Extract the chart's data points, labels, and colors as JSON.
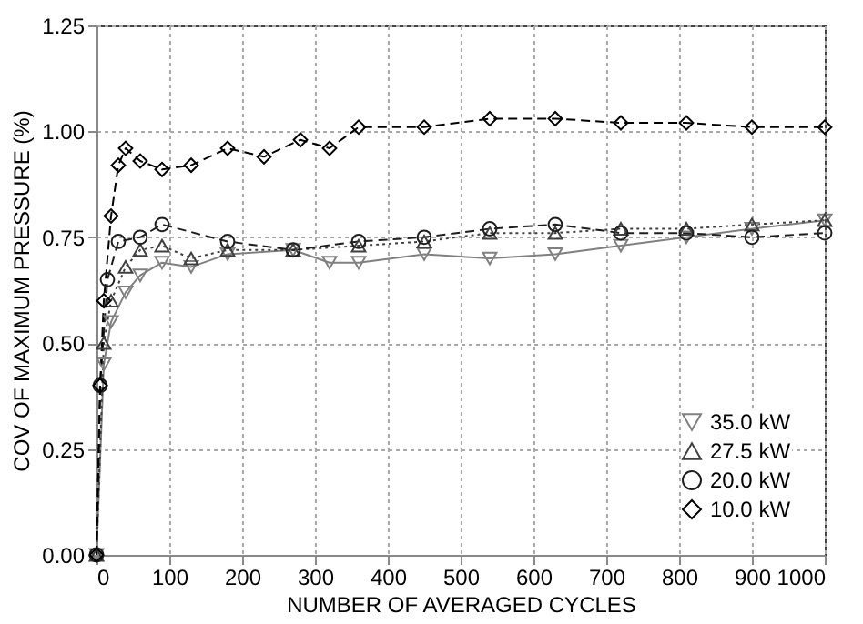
{
  "chart_data": {
    "type": "line",
    "xlabel": "NUMBER OF AVERAGED CYCLES",
    "ylabel": "COV OF MAXIMUM PRESSURE (%)",
    "xlim": [
      0,
      1000
    ],
    "xticks": [
      0,
      100,
      200,
      300,
      400,
      500,
      600,
      700,
      800,
      900,
      1000
    ],
    "ylim": [
      0,
      1.25
    ],
    "yticks": [
      {
        "value": 0,
        "label": "0.00"
      },
      0.25,
      {
        "value": 0.5,
        "label": "0.50"
      },
      0.75,
      {
        "value": 1,
        "label": "1.00"
      },
      1.25
    ],
    "grid": true,
    "legend": "bottom right",
    "series": [
      {
        "name": "35.0 kW",
        "color": "#808080",
        "marker": "triangle-down",
        "line_style": "solid",
        "x": [
          0,
          10,
          20,
          40,
          60,
          90,
          130,
          180,
          270,
          320,
          360,
          450,
          540,
          630,
          720,
          810,
          900,
          1000
        ],
        "values": [
          0,
          0.45,
          0.55,
          0.62,
          0.66,
          0.69,
          0.68,
          0.71,
          0.72,
          0.69,
          0.69,
          0.71,
          0.7,
          0.71,
          0.73,
          0.75,
          0.77,
          0.79
        ]
      },
      {
        "name": "27.5 kW",
        "color": "#404040",
        "marker": "triangle",
        "line_style": "dotted",
        "x": [
          0,
          10,
          20,
          40,
          60,
          90,
          130,
          180,
          270,
          360,
          450,
          540,
          630,
          720,
          810,
          900,
          1000
        ],
        "values": [
          0,
          0.5,
          0.6,
          0.68,
          0.72,
          0.73,
          0.7,
          0.72,
          0.72,
          0.73,
          0.74,
          0.76,
          0.76,
          0.77,
          0.77,
          0.78,
          0.79
        ]
      },
      {
        "name": "20.0 kW",
        "color": "#1e1e1e",
        "marker": "circle",
        "line_style": "dashed",
        "x": [
          0,
          5,
          15,
          30,
          60,
          90,
          180,
          270,
          360,
          450,
          540,
          630,
          720,
          810,
          900,
          1000
        ],
        "values": [
          0,
          0.4,
          0.65,
          0.74,
          0.75,
          0.78,
          0.74,
          0.72,
          0.74,
          0.75,
          0.77,
          0.78,
          0.76,
          0.76,
          0.75,
          0.76
        ]
      },
      {
        "name": "10.0 kW",
        "color": "#000000",
        "marker": "diamond",
        "line_style": "dashed",
        "x": [
          0,
          5,
          10,
          20,
          30,
          40,
          60,
          90,
          130,
          180,
          230,
          280,
          320,
          360,
          450,
          540,
          630,
          720,
          810,
          900,
          1000
        ],
        "values": [
          0,
          0.4,
          0.6,
          0.8,
          0.92,
          0.96,
          0.93,
          0.91,
          0.92,
          0.96,
          0.94,
          0.98,
          0.96,
          1.01,
          1.01,
          1.03,
          1.03,
          1.02,
          1.02,
          1.01,
          1.01
        ]
      }
    ]
  }
}
